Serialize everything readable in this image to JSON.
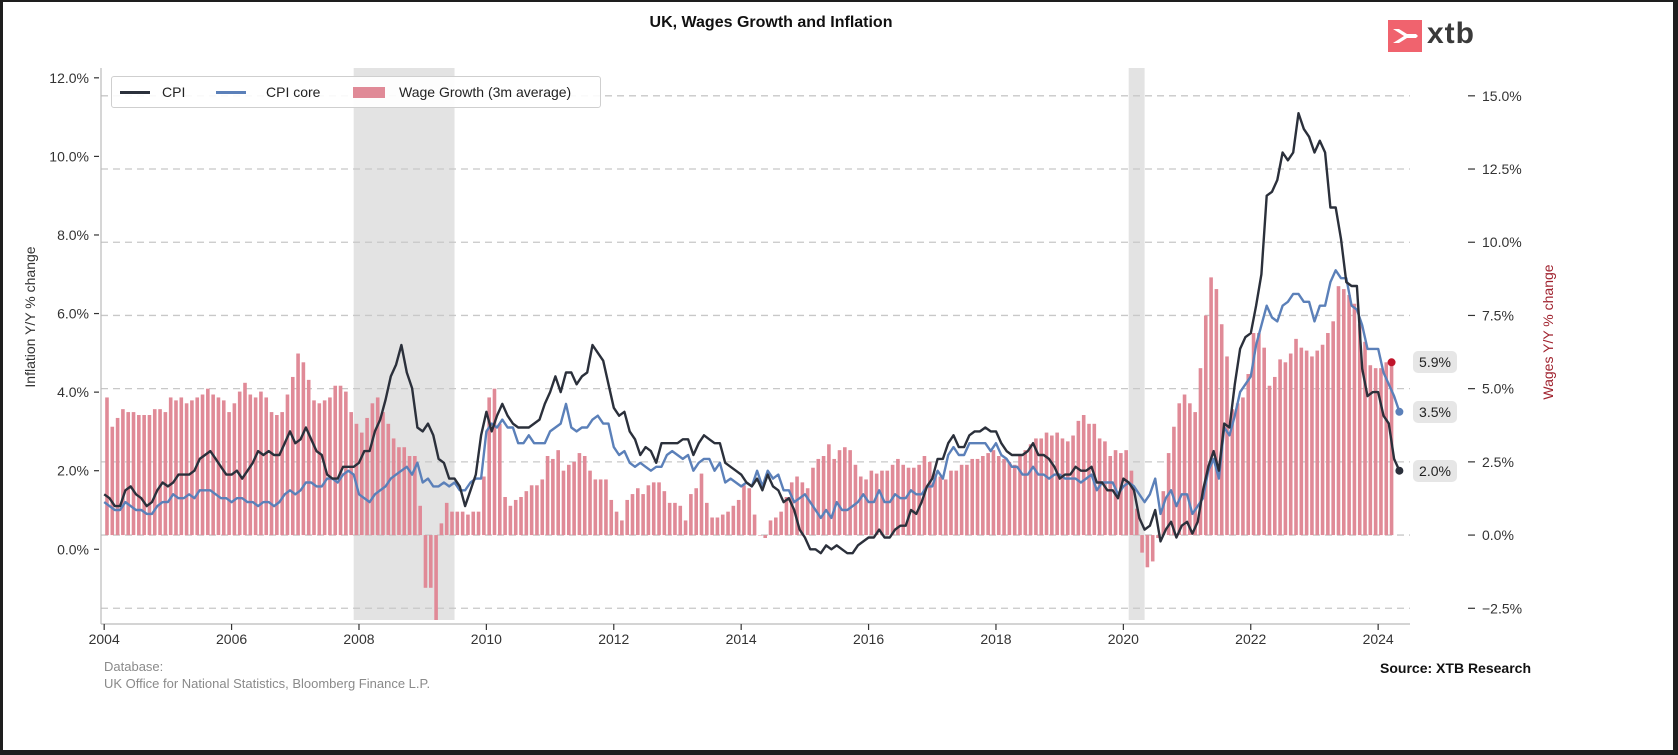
{
  "title": "UK, Wages Growth and Inflation",
  "logo_text": "xtb",
  "footer": {
    "database_label": "Database:",
    "database_sources": "UK Office for National Statistics, Bloomberg Finance L.P.",
    "source": "Source: XTB Research"
  },
  "colors": {
    "cpi": "#2b303b",
    "cpi_core": "#5b80b9",
    "wage": "#e08a97",
    "wage_last_dot": "#c0142a",
    "shade": "#e3e3e3",
    "grid": "#c8c8c8",
    "right_axis_label": "#a0232f",
    "logo": "#f0636e"
  },
  "chart_data": {
    "type": "line",
    "title": "UK, Wages Growth and Inflation",
    "ylabel_left": "Inflation Y/Y % change",
    "ylabel_right": "Wages Y/Y % change",
    "xlabel": "",
    "frequency": "monthly",
    "xlim": [
      2003.95,
      2024.5
    ],
    "ylim_left": [
      -1.8,
      12.25
    ],
    "ylim_right": [
      -2.9,
      15.95
    ],
    "grid": "horizontal dashed at right-axis ticks",
    "legend_position": "top-left",
    "xticks": [
      "2004",
      "2006",
      "2008",
      "2010",
      "2012",
      "2014",
      "2016",
      "2018",
      "2020",
      "2022",
      "2024"
    ],
    "yticks_left": [
      {
        "value": 12,
        "label": "12.0%"
      },
      {
        "value": 10,
        "label": "10.0%"
      },
      {
        "value": 8,
        "label": "8.0%"
      },
      {
        "value": 6,
        "label": "6.0%"
      },
      {
        "value": 4,
        "label": "4.0%"
      },
      {
        "value": 2,
        "label": "2.0%"
      },
      {
        "value": 0,
        "label": "0.0%"
      }
    ],
    "yticks_right": [
      {
        "value": 15,
        "label": "15.0%"
      },
      {
        "value": 12.5,
        "label": "12.5%"
      },
      {
        "value": 10,
        "label": "10.0%"
      },
      {
        "value": 7.5,
        "label": "7.5%"
      },
      {
        "value": 5,
        "label": "5.0%"
      },
      {
        "value": 2.5,
        "label": "2.5%"
      },
      {
        "value": 0,
        "label": "0.0%"
      },
      {
        "value": -2.5,
        "label": "−2.5%"
      }
    ],
    "shaded_periods": [
      [
        "2007-12",
        "2009-06"
      ],
      [
        "2020-02",
        "2020-04"
      ]
    ],
    "series": [
      {
        "name": "CPI",
        "type": "line",
        "axis": "left",
        "start": "2004-01",
        "end_label": "2.0%",
        "values": [
          1.4,
          1.3,
          1.1,
          1.1,
          1.5,
          1.6,
          1.4,
          1.3,
          1.1,
          1.2,
          1.5,
          1.7,
          1.6,
          1.7,
          1.9,
          1.9,
          1.9,
          2.0,
          2.3,
          2.4,
          2.5,
          2.3,
          2.1,
          1.9,
          1.9,
          2.0,
          1.8,
          2.0,
          2.2,
          2.5,
          2.4,
          2.5,
          2.4,
          2.4,
          2.7,
          3.0,
          2.7,
          2.8,
          3.1,
          2.8,
          2.5,
          2.4,
          1.9,
          1.8,
          1.8,
          2.1,
          2.1,
          2.1,
          2.2,
          2.5,
          2.5,
          3.0,
          3.3,
          3.8,
          4.4,
          4.7,
          5.2,
          4.5,
          4.1,
          3.1,
          3.0,
          3.2,
          2.9,
          2.3,
          2.2,
          1.8,
          1.8,
          1.6,
          1.1,
          1.5,
          1.9,
          2.9,
          3.5,
          3.0,
          3.4,
          3.7,
          3.4,
          3.2,
          3.1,
          3.1,
          3.1,
          3.2,
          3.3,
          3.7,
          4.0,
          4.4,
          4.0,
          4.5,
          4.5,
          4.2,
          4.4,
          4.5,
          5.2,
          5.0,
          4.8,
          4.2,
          3.6,
          3.4,
          3.5,
          3.0,
          2.8,
          2.4,
          2.6,
          2.5,
          2.2,
          2.7,
          2.7,
          2.7,
          2.7,
          2.8,
          2.8,
          2.4,
          2.7,
          2.9,
          2.8,
          2.7,
          2.7,
          2.2,
          2.1,
          2.0,
          1.9,
          1.7,
          1.6,
          1.8,
          1.5,
          1.9,
          1.6,
          1.5,
          1.2,
          1.3,
          1.0,
          0.5,
          0.3,
          0.0,
          0.0,
          -0.1,
          0.1,
          0.0,
          0.1,
          0.0,
          -0.1,
          -0.1,
          0.1,
          0.2,
          0.3,
          0.3,
          0.5,
          0.3,
          0.3,
          0.5,
          0.6,
          0.6,
          1.0,
          0.9,
          1.2,
          1.6,
          1.8,
          2.3,
          2.3,
          2.7,
          2.9,
          2.6,
          2.6,
          2.9,
          3.0,
          3.0,
          3.1,
          3.0,
          3.0,
          2.7,
          2.5,
          2.4,
          2.4,
          2.4,
          2.5,
          2.7,
          2.4,
          2.4,
          2.3,
          2.1,
          1.8,
          1.9,
          1.9,
          2.1,
          2.0,
          2.0,
          2.1,
          1.7,
          1.7,
          1.5,
          1.5,
          1.3,
          1.8,
          1.7,
          1.5,
          0.8,
          0.5,
          0.6,
          1.0,
          0.2,
          0.5,
          0.7,
          0.3,
          0.6,
          0.7,
          0.4,
          0.7,
          1.5,
          2.1,
          2.5,
          2.0,
          3.2,
          3.1,
          4.2,
          5.1,
          5.4,
          5.5,
          6.2,
          7.0,
          9.0,
          9.1,
          9.4,
          10.1,
          9.9,
          10.1,
          11.1,
          10.7,
          10.5,
          10.1,
          10.4,
          10.1,
          8.7,
          8.7,
          7.9,
          6.8,
          6.7,
          6.7,
          4.6,
          3.9,
          4.0,
          4.0,
          3.4,
          3.2,
          2.3,
          2.0
        ]
      },
      {
        "name": "CPI core",
        "type": "line",
        "axis": "left",
        "start": "2004-01",
        "end_label": "3.5%",
        "values": [
          1.2,
          1.1,
          1.0,
          1.0,
          1.2,
          1.1,
          1.0,
          1.0,
          0.9,
          0.9,
          1.1,
          1.2,
          1.2,
          1.4,
          1.3,
          1.3,
          1.4,
          1.3,
          1.5,
          1.5,
          1.5,
          1.4,
          1.3,
          1.3,
          1.2,
          1.3,
          1.3,
          1.2,
          1.2,
          1.1,
          1.2,
          1.2,
          1.1,
          1.2,
          1.4,
          1.5,
          1.4,
          1.5,
          1.7,
          1.7,
          1.6,
          1.6,
          1.8,
          1.8,
          1.7,
          1.9,
          2.0,
          1.9,
          1.4,
          1.3,
          1.2,
          1.4,
          1.5,
          1.6,
          1.8,
          1.9,
          2.0,
          2.1,
          1.9,
          2.2,
          1.7,
          1.8,
          1.6,
          1.6,
          1.7,
          1.6,
          1.7,
          1.5,
          1.5,
          1.7,
          1.8,
          1.8,
          3.0,
          3.2,
          3.1,
          3.3,
          3.1,
          3.1,
          2.7,
          2.7,
          2.9,
          2.7,
          2.7,
          2.7,
          3.0,
          3.1,
          3.2,
          3.7,
          3.1,
          3.0,
          3.1,
          3.1,
          3.3,
          3.4,
          3.2,
          3.2,
          2.6,
          2.4,
          2.5,
          2.2,
          2.1,
          2.2,
          2.1,
          2.0,
          2.1,
          2.1,
          2.4,
          2.5,
          2.4,
          2.3,
          2.4,
          2.0,
          2.2,
          2.3,
          2.3,
          2.0,
          2.2,
          1.7,
          1.8,
          1.7,
          1.6,
          1.7,
          1.6,
          2.0,
          1.6,
          2.0,
          1.8,
          1.9,
          1.5,
          1.5,
          1.2,
          1.3,
          1.4,
          1.2,
          1.0,
          0.8,
          1.0,
          0.8,
          1.2,
          1.0,
          1.0,
          1.1,
          1.2,
          1.4,
          1.2,
          1.2,
          1.5,
          1.2,
          1.2,
          1.4,
          1.3,
          1.3,
          1.5,
          1.4,
          1.4,
          1.6,
          1.6,
          2.0,
          1.8,
          2.4,
          2.6,
          2.4,
          2.4,
          2.7,
          2.7,
          2.7,
          2.7,
          2.5,
          2.7,
          2.4,
          2.3,
          2.1,
          2.1,
          1.9,
          1.9,
          2.1,
          1.9,
          1.9,
          1.8,
          1.9,
          1.9,
          1.8,
          1.8,
          1.8,
          1.7,
          1.8,
          1.9,
          1.5,
          1.7,
          1.7,
          1.7,
          1.4,
          1.6,
          1.7,
          1.6,
          1.4,
          1.2,
          1.4,
          1.8,
          0.9,
          1.3,
          1.5,
          1.1,
          1.4,
          1.4,
          0.9,
          1.1,
          1.3,
          2.0,
          2.3,
          1.8,
          3.1,
          2.9,
          3.4,
          4.0,
          4.2,
          4.4,
          5.2,
          5.7,
          6.2,
          5.9,
          5.8,
          6.2,
          6.3,
          6.5,
          6.5,
          6.3,
          6.3,
          5.8,
          6.2,
          6.2,
          6.8,
          7.1,
          6.9,
          6.9,
          6.2,
          6.1,
          5.7,
          5.1,
          5.1,
          5.1,
          4.5,
          4.2,
          3.9,
          3.5
        ]
      },
      {
        "name": "Wage Growth (3m average)",
        "type": "bar",
        "axis": "right",
        "start": "2004-01",
        "end_label": "5.9%",
        "values": [
          4.7,
          3.7,
          4.0,
          4.3,
          4.2,
          4.2,
          4.1,
          4.1,
          4.1,
          4.3,
          4.3,
          4.2,
          4.7,
          4.6,
          4.7,
          4.5,
          4.6,
          4.7,
          4.8,
          5.0,
          4.8,
          4.7,
          4.6,
          4.2,
          4.5,
          4.9,
          5.2,
          4.8,
          4.7,
          4.9,
          4.7,
          4.2,
          4.1,
          4.2,
          4.8,
          5.4,
          6.2,
          5.9,
          5.3,
          4.6,
          4.5,
          4.6,
          4.7,
          5.1,
          5.1,
          4.9,
          4.2,
          3.8,
          3.5,
          4.0,
          4.5,
          4.7,
          4.2,
          3.8,
          3.3,
          3.0,
          3.0,
          2.7,
          2.7,
          1.0,
          -1.8,
          -1.8,
          -2.9,
          0.4,
          1.1,
          0.8,
          0.8,
          0.8,
          0.7,
          0.8,
          0.8,
          2.0,
          4.7,
          5.0,
          3.8,
          1.3,
          1.0,
          1.2,
          1.3,
          1.5,
          1.7,
          1.7,
          1.9,
          2.7,
          2.6,
          2.9,
          2.2,
          2.4,
          2.5,
          2.8,
          2.7,
          2.2,
          1.9,
          1.9,
          1.9,
          1.2,
          0.8,
          0.5,
          1.2,
          1.4,
          1.6,
          1.4,
          1.7,
          1.8,
          1.8,
          1.5,
          1.1,
          1.1,
          1.0,
          0.5,
          1.4,
          1.6,
          2.1,
          1.1,
          0.6,
          0.6,
          0.7,
          0.8,
          1.0,
          1.2,
          1.7,
          1.6,
          0.7,
          0.0,
          -0.1,
          0.5,
          0.6,
          0.8,
          1.3,
          1.8,
          2.0,
          1.8,
          1.6,
          2.3,
          2.6,
          2.7,
          3.1,
          2.6,
          2.9,
          3.0,
          2.9,
          2.4,
          2.0,
          1.9,
          2.2,
          2.1,
          2.2,
          2.2,
          2.4,
          2.6,
          2.4,
          2.3,
          2.3,
          2.4,
          2.7,
          2.5,
          2.1,
          2.0,
          1.9,
          2.2,
          2.2,
          2.4,
          2.4,
          2.6,
          2.6,
          2.7,
          2.8,
          2.9,
          2.7,
          2.6,
          2.5,
          2.4,
          2.7,
          2.9,
          3.1,
          3.3,
          3.3,
          3.5,
          3.4,
          3.5,
          3.3,
          3.2,
          3.4,
          3.9,
          4.1,
          3.8,
          3.8,
          3.3,
          3.2,
          2.7,
          2.9,
          2.8,
          2.9,
          2.2,
          0.9,
          -0.6,
          -1.1,
          -0.9,
          -0.1,
          1.5,
          2.8,
          3.7,
          4.5,
          4.8,
          4.5,
          4.2,
          5.7,
          7.5,
          8.8,
          8.4,
          7.2,
          6.1,
          4.3,
          4.5,
          4.7,
          5.5,
          6.9,
          6.9,
          6.4,
          5.1,
          5.4,
          6.0,
          5.9,
          6.2,
          6.7,
          6.4,
          6.3,
          6.1,
          6.3,
          6.5,
          6.9,
          7.3,
          8.5,
          8.4,
          8.2,
          7.9,
          7.2,
          6.6,
          5.8,
          5.7,
          5.7,
          5.9,
          5.9
        ]
      }
    ]
  }
}
